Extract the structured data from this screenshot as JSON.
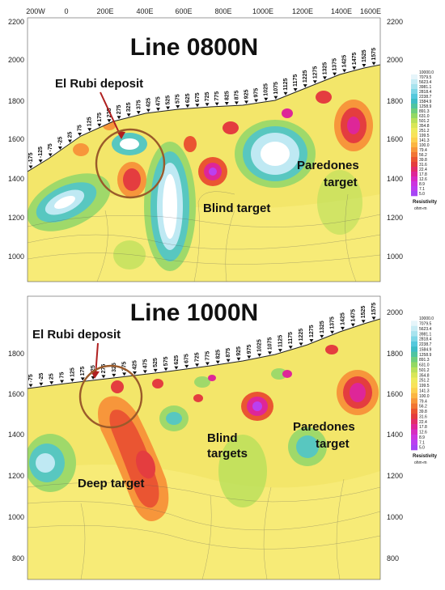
{
  "top": {
    "title": "Line 0800N",
    "x_ticks": [
      "200W",
      "0",
      "200E",
      "400E",
      "600E",
      "800E",
      "1000E",
      "1200E",
      "1400E",
      "1600E"
    ],
    "y_ticks_left": [
      "2200",
      "2000",
      "1800",
      "1600",
      "1400",
      "1200",
      "1000"
    ],
    "y_ticks_right": [
      "2200",
      "2000",
      "1800",
      "1600",
      "1400",
      "1200",
      "1000"
    ],
    "stations": [
      "-175",
      "-125",
      "-75",
      "-25",
      "25",
      "75",
      "125",
      "175",
      "225",
      "275",
      "325",
      "375",
      "425",
      "475",
      "525",
      "575",
      "625",
      "675",
      "725",
      "775",
      "825",
      "875",
      "925",
      "975",
      "1025",
      "1075",
      "1125",
      "1175",
      "1225",
      "1275",
      "1325",
      "1375",
      "1425",
      "1475",
      "1525",
      "1575"
    ],
    "labels": {
      "deposit": "El Rubi deposit",
      "blind": "Blind target",
      "paredones1": "Paredones",
      "paredones2": "target"
    }
  },
  "bottom": {
    "title": "Line 1000N",
    "y_ticks_left": [
      "1800",
      "1600",
      "1400",
      "1200",
      "1000",
      "800"
    ],
    "y_ticks_right": [
      "2000",
      "1800",
      "1600",
      "1400",
      "1200",
      "1000",
      "800"
    ],
    "stations": [
      "-75",
      "-25",
      "25",
      "75",
      "125",
      "175",
      "225",
      "275",
      "325",
      "375",
      "425",
      "475",
      "525",
      "575",
      "625",
      "675",
      "725",
      "775",
      "825",
      "875",
      "925",
      "975",
      "1025",
      "1075",
      "1125",
      "1175",
      "1225",
      "1275",
      "1325",
      "1375",
      "1425",
      "1475",
      "1525",
      "1575"
    ],
    "labels": {
      "deposit": "El Rubi deposit",
      "deep": "Deep target",
      "blind1": "Blind",
      "blind2": "targets",
      "paredones1": "Paredones",
      "paredones2": "target"
    }
  },
  "colorbar": {
    "values": [
      "10000.0",
      "7079.5",
      "5623.4",
      "3981.1",
      "2818.4",
      "2238.7",
      "1584.9",
      "1258.9",
      "891.3",
      "631.0",
      "501.2",
      "354.8",
      "251.2",
      "199.5",
      "141.3",
      "100.0",
      "79.4",
      "56.2",
      "39.8",
      "31.6",
      "22.4",
      "17.8",
      "12.6",
      "8.9",
      "7.1",
      "5.0"
    ],
    "colors": [
      "#ffffff",
      "#e6f5fa",
      "#c8ecf5",
      "#a8e3ee",
      "#7fd6e6",
      "#55c8dc",
      "#3ebcc5",
      "#4fc4a0",
      "#6fce7c",
      "#93d863",
      "#b8e05a",
      "#d8e658",
      "#eeea5c",
      "#f8e25a",
      "#fcd04e",
      "#fbb543",
      "#f7963b",
      "#f17634",
      "#ea5532",
      "#e43d3f",
      "#e22d6a",
      "#de2698",
      "#d62bc1",
      "#cc35df",
      "#bb3ff0",
      "#a646f5"
    ],
    "label1": "Resistivity",
    "label2": "ohm-m"
  }
}
